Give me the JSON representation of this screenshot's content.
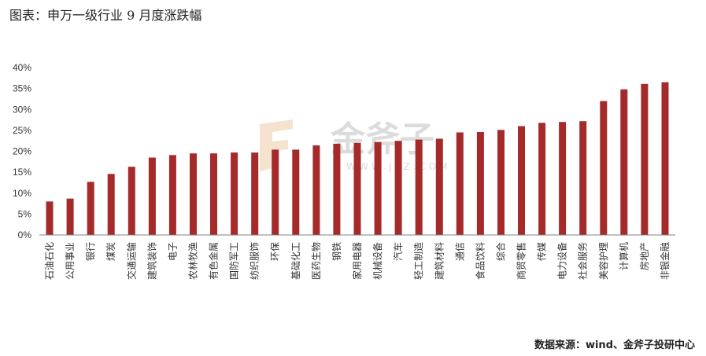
{
  "title": "图表：申万一级行业 9 月度涨跌幅",
  "source": "数据来源：wind、金斧子投研中心",
  "watermark": {
    "text": "金斧子",
    "url": "WWW.JFZ.COM"
  },
  "colors": {
    "bar": "#a52a2a",
    "axis": "#808080"
  },
  "chart_data": {
    "type": "bar",
    "title": "图表：申万一级行业 9 月度涨跌幅",
    "xlabel": "",
    "ylabel": "",
    "ylim": [
      0,
      40
    ],
    "yticks": [
      "0%",
      "5%",
      "10%",
      "15%",
      "20%",
      "25%",
      "30%",
      "35%",
      "40%"
    ],
    "grid": false,
    "categories": [
      "石油石化",
      "公用事业",
      "银行",
      "煤炭",
      "交通运输",
      "建筑装饰",
      "电子",
      "农林牧渔",
      "有色金属",
      "国防军工",
      "纺织服饰",
      "环保",
      "基础化工",
      "医药生物",
      "钢铁",
      "家用电器",
      "机械设备",
      "汽车",
      "轻工制造",
      "建筑材料",
      "通信",
      "食品饮料",
      "综合",
      "商贸零售",
      "传媒",
      "电力设备",
      "社会服务",
      "美容护理",
      "计算机",
      "房地产",
      "非银金融"
    ],
    "values": [
      8.0,
      8.7,
      12.7,
      14.6,
      16.3,
      18.5,
      19.1,
      19.5,
      19.5,
      19.7,
      19.7,
      20.4,
      20.4,
      21.4,
      21.8,
      22.0,
      22.2,
      22.5,
      22.8,
      23.0,
      24.5,
      24.6,
      25.1,
      26.0,
      26.8,
      27.0,
      27.2,
      32.0,
      34.8,
      36.1,
      36.5
    ]
  }
}
